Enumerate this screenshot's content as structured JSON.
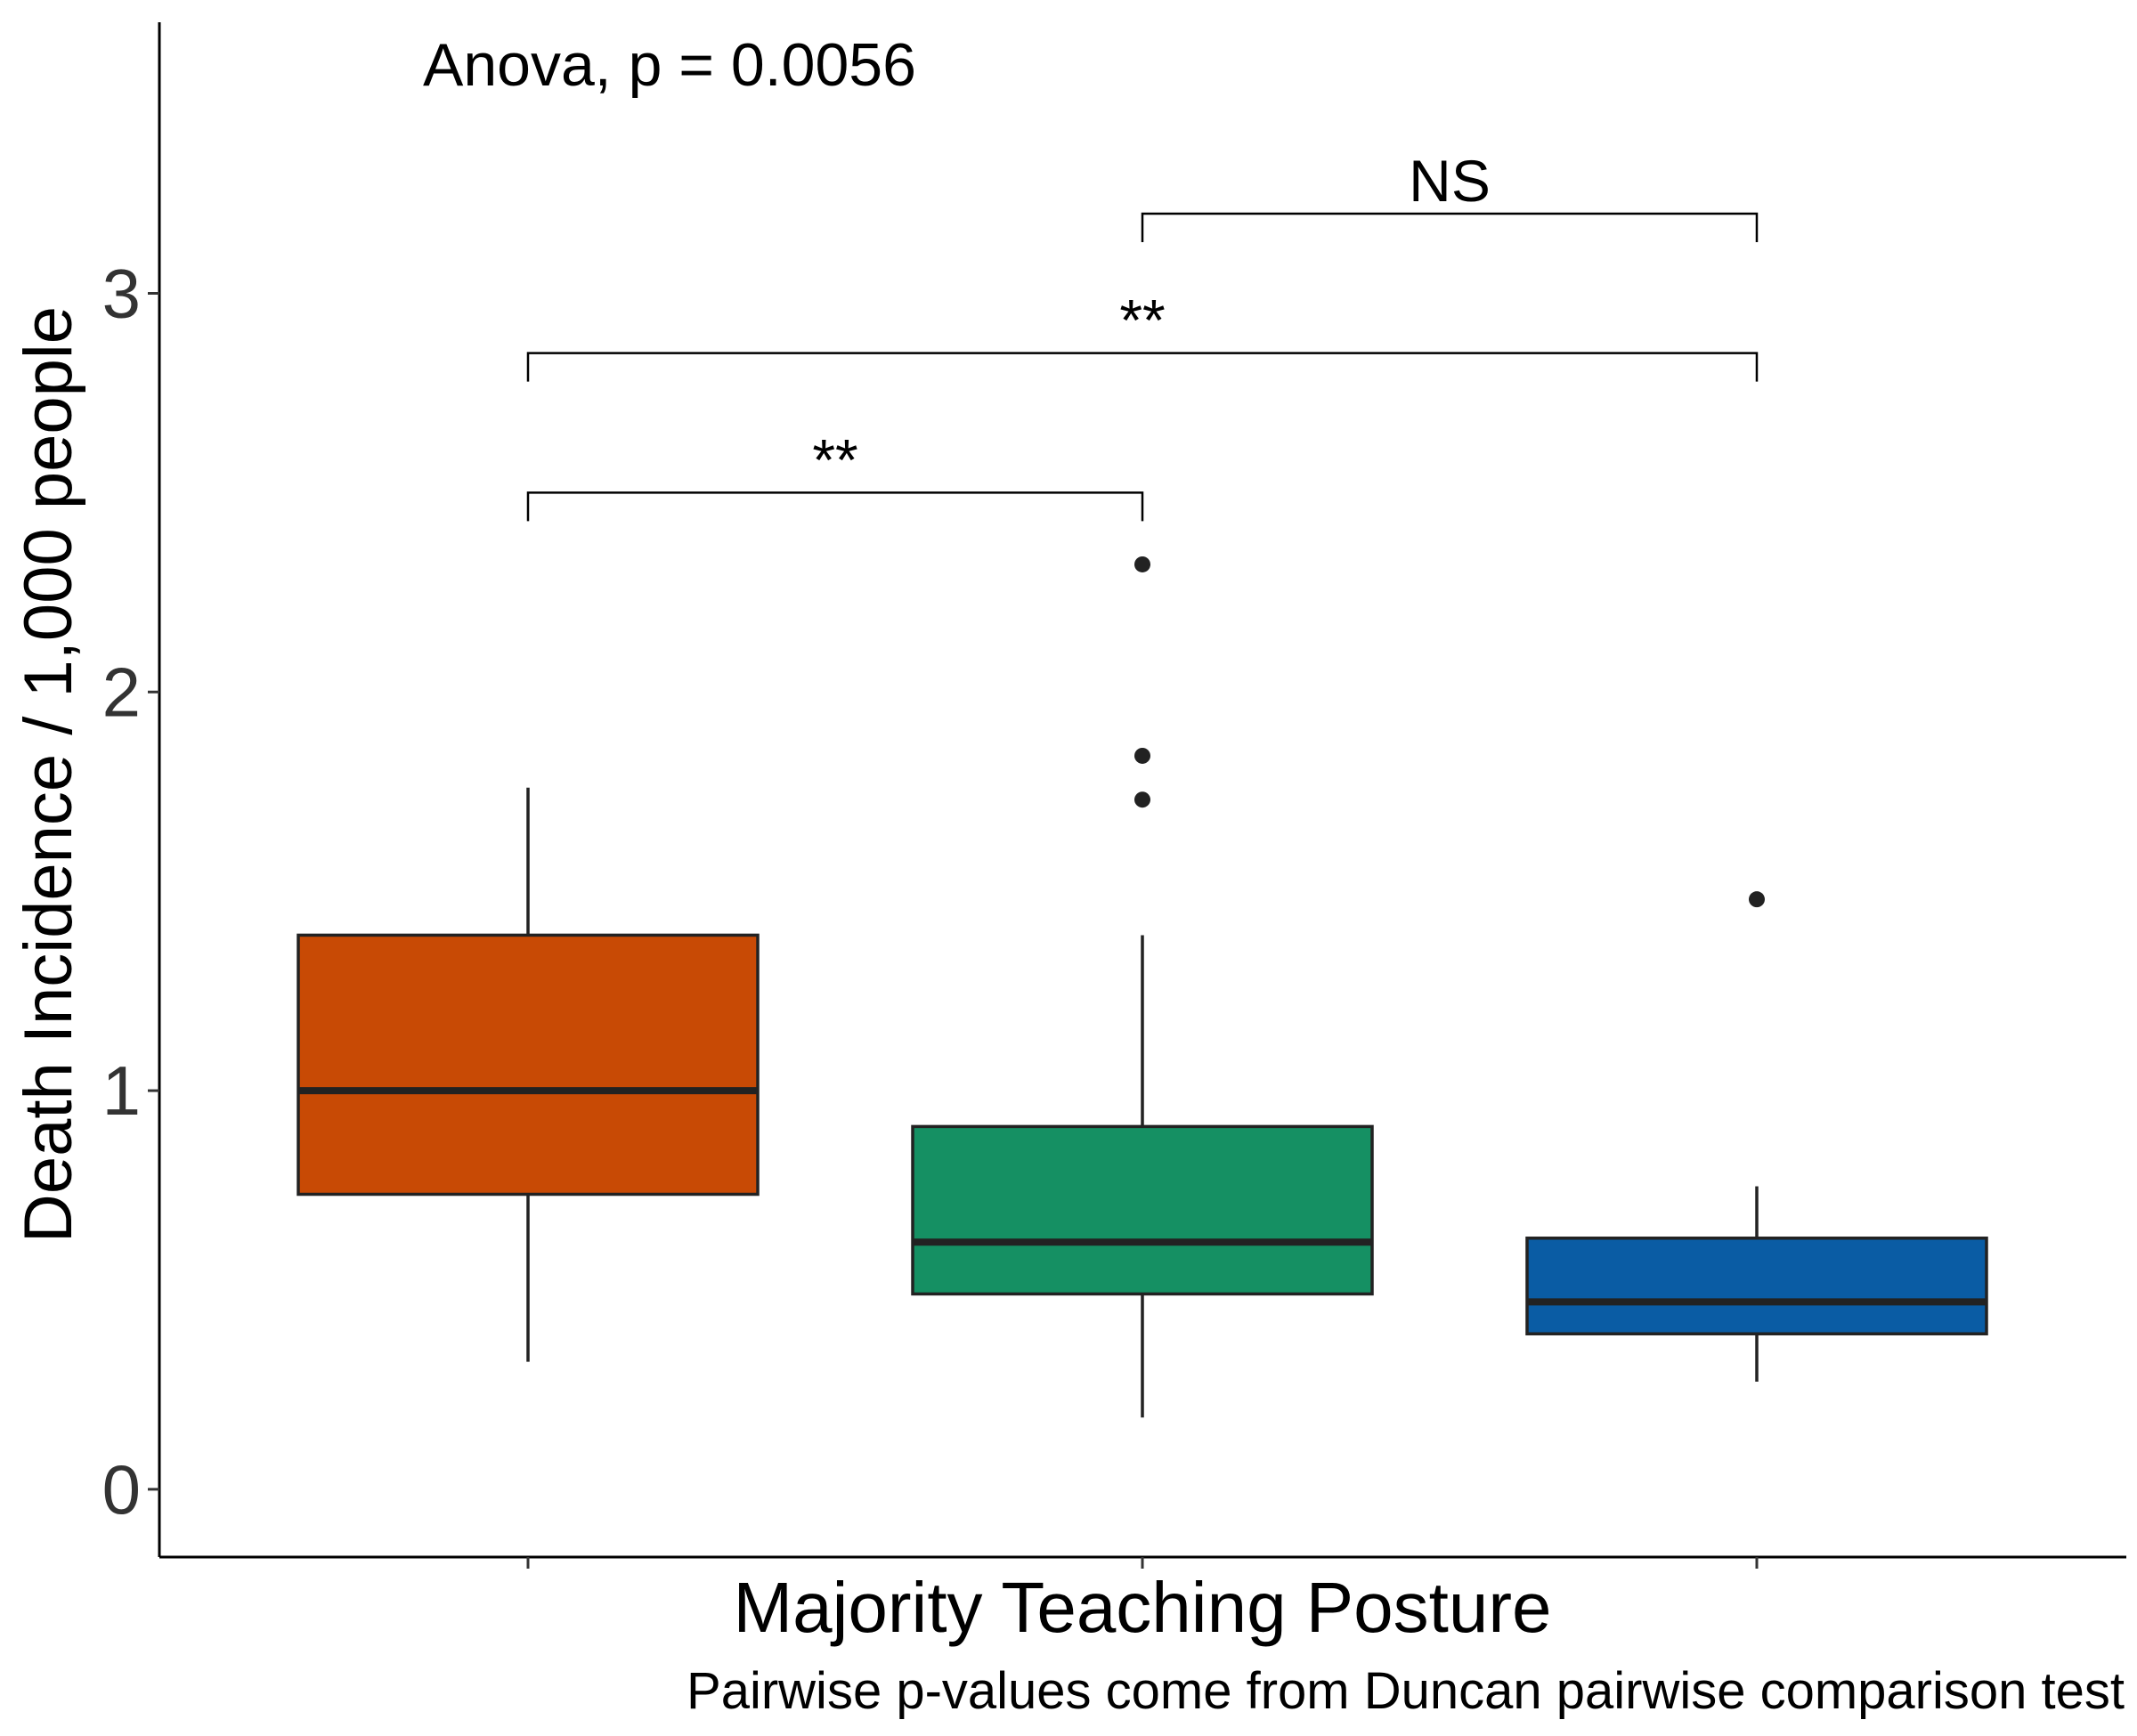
{
  "chart_data": {
    "type": "box",
    "xlabel": "Majority Teaching Posture",
    "ylabel": "Death Incidence / 1,000 people",
    "caption": "Pairwise p-values come from Duncan pairwise comparison test",
    "annotation": "Anova, p = 0.0056",
    "ylim": [
      -0.17,
      3.68
    ],
    "yticks": [
      0,
      1,
      2,
      3
    ],
    "grid": false,
    "legend": "none",
    "groups": [
      {
        "color": "#C84A05",
        "whisker_low": 0.32,
        "q1": 0.74,
        "median": 1.0,
        "q3": 1.39,
        "whisker_high": 1.76,
        "outliers": []
      },
      {
        "color": "#159063",
        "whisker_low": 0.18,
        "q1": 0.49,
        "median": 0.62,
        "q3": 0.91,
        "whisker_high": 1.39,
        "outliers": [
          2.32,
          1.84,
          1.73
        ]
      },
      {
        "color": "#0A5CA4",
        "whisker_low": 0.27,
        "q1": 0.39,
        "median": 0.47,
        "q3": 0.63,
        "whisker_high": 0.76,
        "outliers": [
          1.48
        ]
      }
    ],
    "comparisons": [
      {
        "from": 0,
        "to": 1,
        "y": 2.5,
        "label": "**"
      },
      {
        "from": 0,
        "to": 2,
        "y": 2.85,
        "label": "**"
      },
      {
        "from": 1,
        "to": 2,
        "y": 3.2,
        "label": "NS"
      }
    ]
  }
}
